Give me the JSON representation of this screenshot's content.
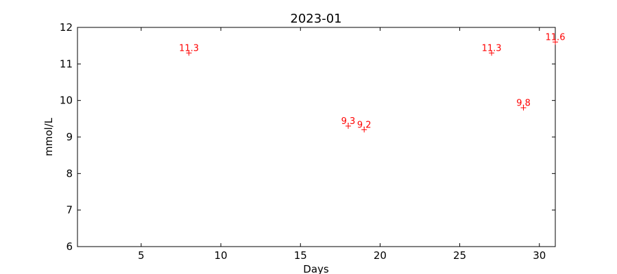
{
  "chart_data": {
    "type": "scatter",
    "title": "2023-01",
    "xlabel": "Days",
    "ylabel": "mmol/L",
    "xlim": [
      1,
      31
    ],
    "ylim": [
      6,
      12
    ],
    "xticks": [
      5,
      10,
      15,
      20,
      25,
      30
    ],
    "yticks": [
      6,
      7,
      8,
      9,
      10,
      11,
      12
    ],
    "grid": false,
    "marker_color": "#ff0000",
    "points": [
      {
        "x": 8,
        "y": 11.3,
        "label": "11.3"
      },
      {
        "x": 18,
        "y": 9.3,
        "label": "9.3"
      },
      {
        "x": 19,
        "y": 9.2,
        "label": "9.2"
      },
      {
        "x": 27,
        "y": 11.3,
        "label": "11.3"
      },
      {
        "x": 29,
        "y": 9.8,
        "label": "9.8"
      },
      {
        "x": 31,
        "y": 11.6,
        "label": "11.6"
      }
    ]
  }
}
